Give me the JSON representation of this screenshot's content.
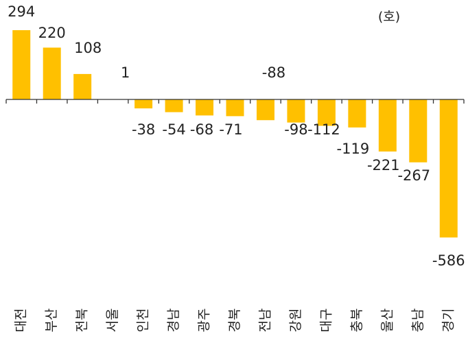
{
  "chart_data": {
    "type": "bar",
    "unit_label": "(호)",
    "categories": [
      "대전",
      "부산",
      "전북",
      "서울",
      "인천",
      "경남",
      "광주",
      "경북",
      "전남",
      "강원",
      "대구",
      "충북",
      "울산",
      "충남",
      "경기"
    ],
    "values": [
      294,
      220,
      108,
      1,
      -38,
      -54,
      -68,
      -71,
      -88,
      -98,
      -112,
      -119,
      -221,
      -267,
      -586
    ],
    "value_labels": [
      "294",
      "220",
      "108",
      "1",
      "-38",
      "-54",
      "-68",
      "-71",
      "-88",
      "-98",
      "-112",
      "-119",
      "-221",
      "-267",
      "-586"
    ],
    "ylim": [
      -586,
      294
    ],
    "bar_color": "#FFC000",
    "axis_color": "#333333",
    "legend": "none",
    "grid": false
  }
}
